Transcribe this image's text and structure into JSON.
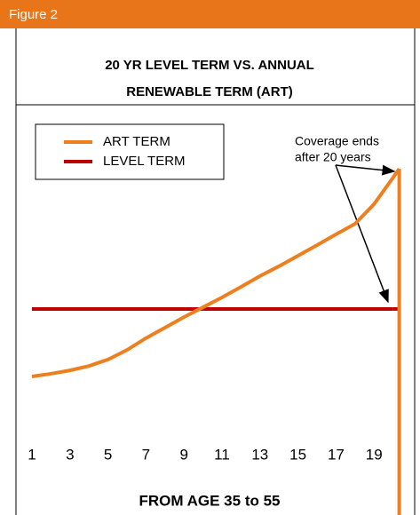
{
  "chart_data": {
    "type": "line",
    "figure_label": "Figure 2",
    "title": [
      "20 YR LEVEL TERM VS. ANNUAL",
      "RENEWABLE TERM (ART)"
    ],
    "xlabel": "FROM AGE 35 to 55",
    "annotation": [
      "Coverage ends",
      "after 20 years"
    ],
    "categories": [
      1,
      null,
      3,
      null,
      5,
      null,
      7,
      null,
      9,
      null,
      11,
      null,
      13,
      null,
      15,
      null,
      17,
      null,
      19,
      null
    ],
    "series": [
      {
        "name": "ART TERM",
        "color": "#ee7f1f",
        "values": [
          19.9,
          20.7,
          21.7,
          23.0,
          24.9,
          27.7,
          31.2,
          34.3,
          37.4,
          40.3,
          43.2,
          46.3,
          49.5,
          52.4,
          55.5,
          58.6,
          61.8,
          64.9,
          70.7,
          78.5
        ]
      },
      {
        "name": "LEVEL TERM",
        "color": "#c00000",
        "values": [
          39.8,
          39.8,
          39.8,
          39.8,
          39.8,
          39.8,
          39.8,
          39.8,
          39.8,
          39.8,
          39.8,
          39.8,
          39.8,
          39.8,
          39.8,
          39.8,
          39.8,
          39.8,
          39.8,
          39.8
        ]
      }
    ],
    "ylim": [
      0,
      100
    ],
    "legend": "upper left"
  }
}
